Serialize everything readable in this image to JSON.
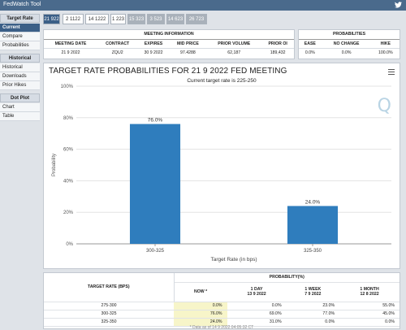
{
  "app": {
    "title": "FedWatch Tool"
  },
  "sidebar": {
    "sections": [
      {
        "heading": "Target Rate",
        "items": [
          "Current",
          "Compare",
          "Probabilities"
        ]
      },
      {
        "heading": "Historical",
        "items": [
          "Historical",
          "Downloads",
          "Prior Hikes"
        ]
      },
      {
        "heading": "Dot Plot",
        "items": [
          "Chart",
          "Table"
        ]
      }
    ]
  },
  "tabs": [
    "21 922",
    "2 1122",
    "14 1222",
    "1 223",
    "15 323",
    "3 523",
    "14 623",
    "26 723"
  ],
  "meeting_info": {
    "heading": "MEETING INFORMATION",
    "headers": [
      "MEETING DATE",
      "CONTRACT",
      "EXPIRES",
      "MID PRICE",
      "PRIOR VOLUME",
      "PRIOR OI"
    ],
    "values": [
      "21 9 2022",
      "ZQU2",
      "30 9 2022",
      "97.4288",
      "62,187",
      "189,432"
    ]
  },
  "probabilities_info": {
    "heading": "PROBABILITIES",
    "headers": [
      "EASE",
      "NO CHANGE",
      "HIKE"
    ],
    "values": [
      "0.0%",
      "0.0%",
      "100.0%"
    ]
  },
  "chart": {
    "title": "TARGET RATE PROBABILITIES FOR 21 9 2022 FED MEETING",
    "subtitle": "Current target rate is 225-250"
  },
  "chart_data": {
    "type": "bar",
    "categories": [
      "300-325",
      "325-350"
    ],
    "values": [
      76.0,
      24.0
    ],
    "value_labels": [
      "76.0%",
      "24.0%"
    ],
    "xlabel": "Target Rate (in bps)",
    "ylabel": "Probability",
    "ylim": [
      0,
      100
    ],
    "yticks": [
      "0%",
      "20%",
      "40%",
      "60%",
      "80%",
      "100%"
    ],
    "bar_color": "#2f7dbd",
    "grid": true
  },
  "prob_table": {
    "col_target": "TARGET RATE (BPS)",
    "group_heading": "PROBABILITY(%)",
    "columns": [
      {
        "line1": "NOW *",
        "line2": ""
      },
      {
        "line1": "1 DAY",
        "line2": "13 9 2022"
      },
      {
        "line1": "1 WEEK",
        "line2": "7 9 2022"
      },
      {
        "line1": "1 MONTH",
        "line2": "12 8 2022"
      }
    ],
    "rows": [
      {
        "rate": "275-300",
        "values": [
          "0.0%",
          "0.0%",
          "23.0%",
          "55.0%"
        ]
      },
      {
        "rate": "300-325",
        "values": [
          "76.0%",
          "69.0%",
          "77.0%",
          "45.0%"
        ]
      },
      {
        "rate": "325-350",
        "values": [
          "24.0%",
          "31.0%",
          "0.0%",
          "0.0%"
        ]
      }
    ],
    "footnote": "* Data as of 14 9 2022 04:05:32 CT"
  }
}
